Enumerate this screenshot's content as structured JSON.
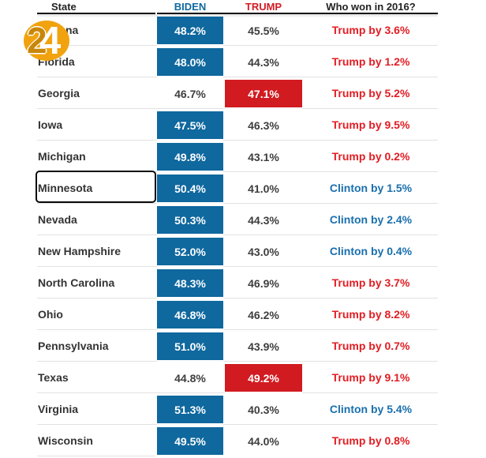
{
  "header": {
    "state": "State",
    "biden": "BIDEN",
    "trump": "TRUMP",
    "who_won": "Who won in 2016?"
  },
  "selected_state": "Minnesota",
  "logo": {
    "digit1": "2",
    "digit2": "4"
  },
  "colors": {
    "biden_cell_blue": "#0f689e",
    "trump_cell_red": "#d11b21",
    "result_trump_red": "#e11d23",
    "result_clinton_blue": "#1a6fad",
    "header_biden_blue": "#0f689e",
    "header_trump_red": "#d41c24",
    "row_line_gray": "#e2e2e2",
    "logo_orange": "#f0a30f"
  },
  "rows": [
    {
      "state": "Arizona",
      "biden": "48.2%",
      "trump": "45.5%",
      "leader": "biden",
      "result": "Trump by 3.6%",
      "result_party": "trump"
    },
    {
      "state": "Florida",
      "biden": "48.0%",
      "trump": "44.3%",
      "leader": "biden",
      "result": "Trump by 1.2%",
      "result_party": "trump"
    },
    {
      "state": "Georgia",
      "biden": "46.7%",
      "trump": "47.1%",
      "leader": "trump",
      "result": "Trump by 5.2%",
      "result_party": "trump"
    },
    {
      "state": "Iowa",
      "biden": "47.5%",
      "trump": "46.3%",
      "leader": "biden",
      "result": "Trump by 9.5%",
      "result_party": "trump"
    },
    {
      "state": "Michigan",
      "biden": "49.8%",
      "trump": "43.1%",
      "leader": "biden",
      "result": "Trump by 0.2%",
      "result_party": "trump"
    },
    {
      "state": "Minnesota",
      "biden": "50.4%",
      "trump": "41.0%",
      "leader": "biden",
      "result": "Clinton by 1.5%",
      "result_party": "clinton"
    },
    {
      "state": "Nevada",
      "biden": "50.3%",
      "trump": "44.3%",
      "leader": "biden",
      "result": "Clinton by 2.4%",
      "result_party": "clinton"
    },
    {
      "state": "New Hampshire",
      "biden": "52.0%",
      "trump": "43.0%",
      "leader": "biden",
      "result": "Clinton by 0.4%",
      "result_party": "clinton"
    },
    {
      "state": "North Carolina",
      "biden": "48.3%",
      "trump": "46.9%",
      "leader": "biden",
      "result": "Trump by 3.7%",
      "result_party": "trump"
    },
    {
      "state": "Ohio",
      "biden": "46.8%",
      "trump": "46.2%",
      "leader": "biden",
      "result": "Trump by 8.2%",
      "result_party": "trump"
    },
    {
      "state": "Pennsylvania",
      "biden": "51.0%",
      "trump": "43.9%",
      "leader": "biden",
      "result": "Trump by 0.7%",
      "result_party": "trump"
    },
    {
      "state": "Texas",
      "biden": "44.8%",
      "trump": "49.2%",
      "leader": "trump",
      "result": "Trump by 9.1%",
      "result_party": "trump"
    },
    {
      "state": "Virginia",
      "biden": "51.3%",
      "trump": "40.3%",
      "leader": "biden",
      "result": "Clinton by 5.4%",
      "result_party": "clinton"
    },
    {
      "state": "Wisconsin",
      "biden": "49.5%",
      "trump": "44.0%",
      "leader": "biden",
      "result": "Trump by 0.8%",
      "result_party": "trump"
    }
  ],
  "chart_data": {
    "type": "table",
    "columns": [
      "State",
      "BIDEN",
      "TRUMP",
      "Who won in 2016?"
    ],
    "rows": [
      [
        "Arizona",
        48.2,
        45.5,
        "Trump by 3.6%"
      ],
      [
        "Florida",
        48.0,
        44.3,
        "Trump by 1.2%"
      ],
      [
        "Georgia",
        46.7,
        47.1,
        "Trump by 5.2%"
      ],
      [
        "Iowa",
        47.5,
        46.3,
        "Trump by 9.5%"
      ],
      [
        "Michigan",
        49.8,
        43.1,
        "Trump by 0.2%"
      ],
      [
        "Minnesota",
        50.4,
        41.0,
        "Clinton by 1.5%"
      ],
      [
        "Nevada",
        50.3,
        44.3,
        "Clinton by 2.4%"
      ],
      [
        "New Hampshire",
        52.0,
        43.0,
        "Clinton by 0.4%"
      ],
      [
        "North Carolina",
        48.3,
        46.9,
        "Trump by 3.7%"
      ],
      [
        "Ohio",
        46.8,
        46.2,
        "Trump by 8.2%"
      ],
      [
        "Pennsylvania",
        51.0,
        43.9,
        "Trump by 0.7%"
      ],
      [
        "Texas",
        44.8,
        49.2,
        "Trump by 9.1%"
      ],
      [
        "Virginia",
        51.3,
        40.3,
        "Clinton by 5.4%"
      ],
      [
        "Wisconsin",
        49.5,
        44.0,
        "Trump by 0.8%"
      ]
    ],
    "highlight_rule": "leading candidate's cell is filled: blue for Biden, red for Trump; 2016 result text is red for Trump wins, blue for Clinton wins",
    "values_unit": "percent"
  }
}
